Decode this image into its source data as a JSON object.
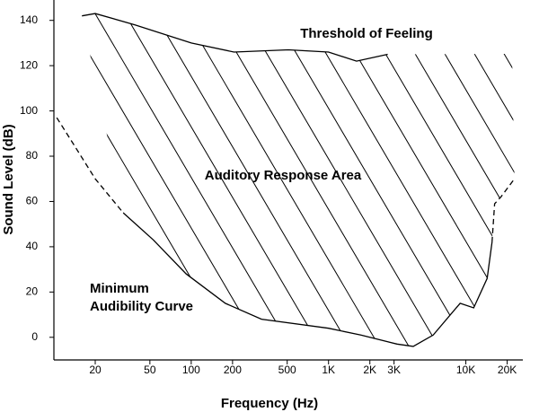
{
  "chart_data": {
    "type": "line",
    "xlabel": "Frequency (Hz)",
    "ylabel": "Sound Level (dB)",
    "xscale": "log",
    "xlim": [
      10,
      26000
    ],
    "ylim": [
      -10,
      149
    ],
    "xticks": [
      20,
      50,
      100,
      200,
      500,
      {
        "value": 1000,
        "label": "1K"
      },
      {
        "value": 2000,
        "label": "2K"
      },
      {
        "value": 3000,
        "label": "3K"
      },
      {
        "value": 10000,
        "label": "10K"
      },
      {
        "value": 20000,
        "label": "20K"
      }
    ],
    "yticks": [
      0,
      20,
      40,
      60,
      80,
      100,
      120,
      140
    ],
    "annotations": [
      "Threshold of Feeling",
      "Auditory Response Area",
      "Minimum",
      "Audibility Curve"
    ],
    "series": [
      {
        "color": "#000000",
        "dashed": false,
        "x": [
          16,
          20,
          39,
          100,
          205,
          510,
          1000,
          1600,
          2700
        ],
        "values": [
          142,
          143,
          138,
          130,
          126,
          127,
          126,
          122,
          125
        ]
      },
      {
        "color": "#000000",
        "dashed": false,
        "x": [
          32,
          53,
          92,
          177,
          325,
          1000,
          1720,
          3150,
          4140,
          5780,
          9080,
          11400,
          14300,
          15500
        ],
        "values": [
          55,
          43,
          28,
          15,
          8,
          4,
          1,
          -3,
          -4,
          1,
          15,
          13,
          26,
          42
        ]
      },
      {
        "color": "#000000",
        "dashed": true,
        "x": [
          15500,
          16200,
          18000,
          22600
        ],
        "values": [
          42,
          59,
          62,
          70
        ]
      },
      {
        "color": "#000000",
        "dashed": true,
        "x": [
          10.5,
          14,
          20,
          32
        ],
        "values": [
          97,
          85,
          70,
          55
        ]
      }
    ]
  }
}
